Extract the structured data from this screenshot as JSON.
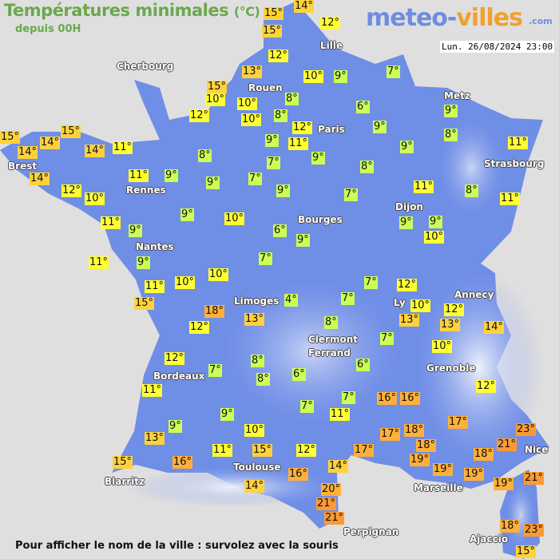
{
  "header": {
    "title": "Températures minimales",
    "unit": "(°C)",
    "subtitle": "depuis 00H",
    "timestamp": "Lun. 26/08/2024 23:00"
  },
  "logo": {
    "part1": "meteo-",
    "part2": "villes",
    "suffix": ".com"
  },
  "footer": "Pour afficher le nom de la ville : survolez avec la souris",
  "colors": {
    "land": "#6f8ee6",
    "cold_label": "#ccff55",
    "mild_label": "#ffff33",
    "warm_label": "#ffd23c",
    "hot_label": "#ffb03a",
    "very_hot_label": "#fb9a35"
  },
  "cities": [
    "Cherbourg",
    "Lille",
    "Rouen",
    "Paris",
    "Metz",
    "Strasbourg",
    "Brest",
    "Rennes",
    "Nantes",
    "Bourges",
    "Dijon",
    "Limoges",
    "Annecy",
    "Ly",
    "Clermont",
    "Ferrand",
    "Grenoble",
    "Bordeaux",
    "Toulouse",
    "Biarritz",
    "Marseille",
    "Nice",
    "Perpignan",
    "Ajaccio"
  ],
  "temperatures": [
    "15°",
    "14°",
    "15°",
    "12°",
    "12°",
    "13°",
    "15°",
    "10°",
    "12°",
    "10°",
    "10°",
    "8°",
    "8°",
    "10°",
    "9°",
    "7°",
    "6°",
    "9°",
    "8°",
    "12°",
    "11°",
    "9°",
    "9°",
    "9°",
    "9°",
    "7°",
    "8°",
    "7°",
    "9°",
    "11°",
    "8°",
    "11°",
    "11°",
    "7°",
    "9°",
    "8°",
    "9°",
    "11°",
    "11°",
    "14°",
    "15°",
    "14°",
    "14°",
    "15°",
    "14°",
    "12°",
    "10°",
    "9°",
    "10°",
    "6°",
    "9°",
    "9°",
    "9°",
    "10°",
    "11°",
    "9°",
    "11°",
    "9°",
    "11°",
    "10°",
    "10°",
    "15°",
    "18°",
    "12°",
    "13°",
    "7°",
    "4°",
    "7°",
    "7°",
    "12°",
    "10°",
    "13°",
    "12°",
    "13°",
    "14°",
    "8°",
    "7°",
    "10°",
    "6°",
    "6°",
    "8°",
    "8°",
    "7°",
    "12°",
    "11°",
    "9°",
    "9°",
    "13°",
    "10°",
    "11°",
    "15°",
    "12°",
    "15°",
    "16°",
    "14°",
    "16°",
    "14°",
    "17°",
    "20°",
    "21°",
    "21°",
    "7°",
    "11°",
    "7°",
    "16°",
    "16°",
    "17°",
    "12°",
    "17°",
    "18°",
    "18°",
    "19°",
    "19°",
    "18°",
    "19°",
    "23°",
    "21°",
    "21°",
    "19°",
    "18°",
    "23°",
    "15°"
  ]
}
